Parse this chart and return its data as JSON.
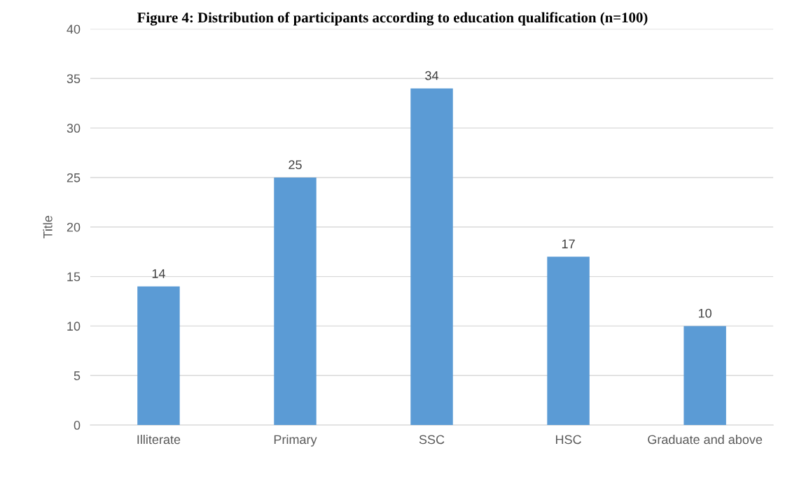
{
  "chart_data": {
    "type": "bar",
    "title": "Figure 4: Distribution of participants according to education qualification (n=100)",
    "ylabel": "Title",
    "categories": [
      "Illiterate",
      "Primary",
      "SSC",
      "HSC",
      "Graduate and above"
    ],
    "values": [
      14,
      25,
      34,
      17,
      10
    ],
    "color": "#5b9bd5",
    "ylim": [
      0,
      40
    ],
    "yticks": [
      0,
      5,
      10,
      15,
      20,
      25,
      30,
      35,
      40
    ],
    "grid": "y",
    "data_labels": true
  }
}
